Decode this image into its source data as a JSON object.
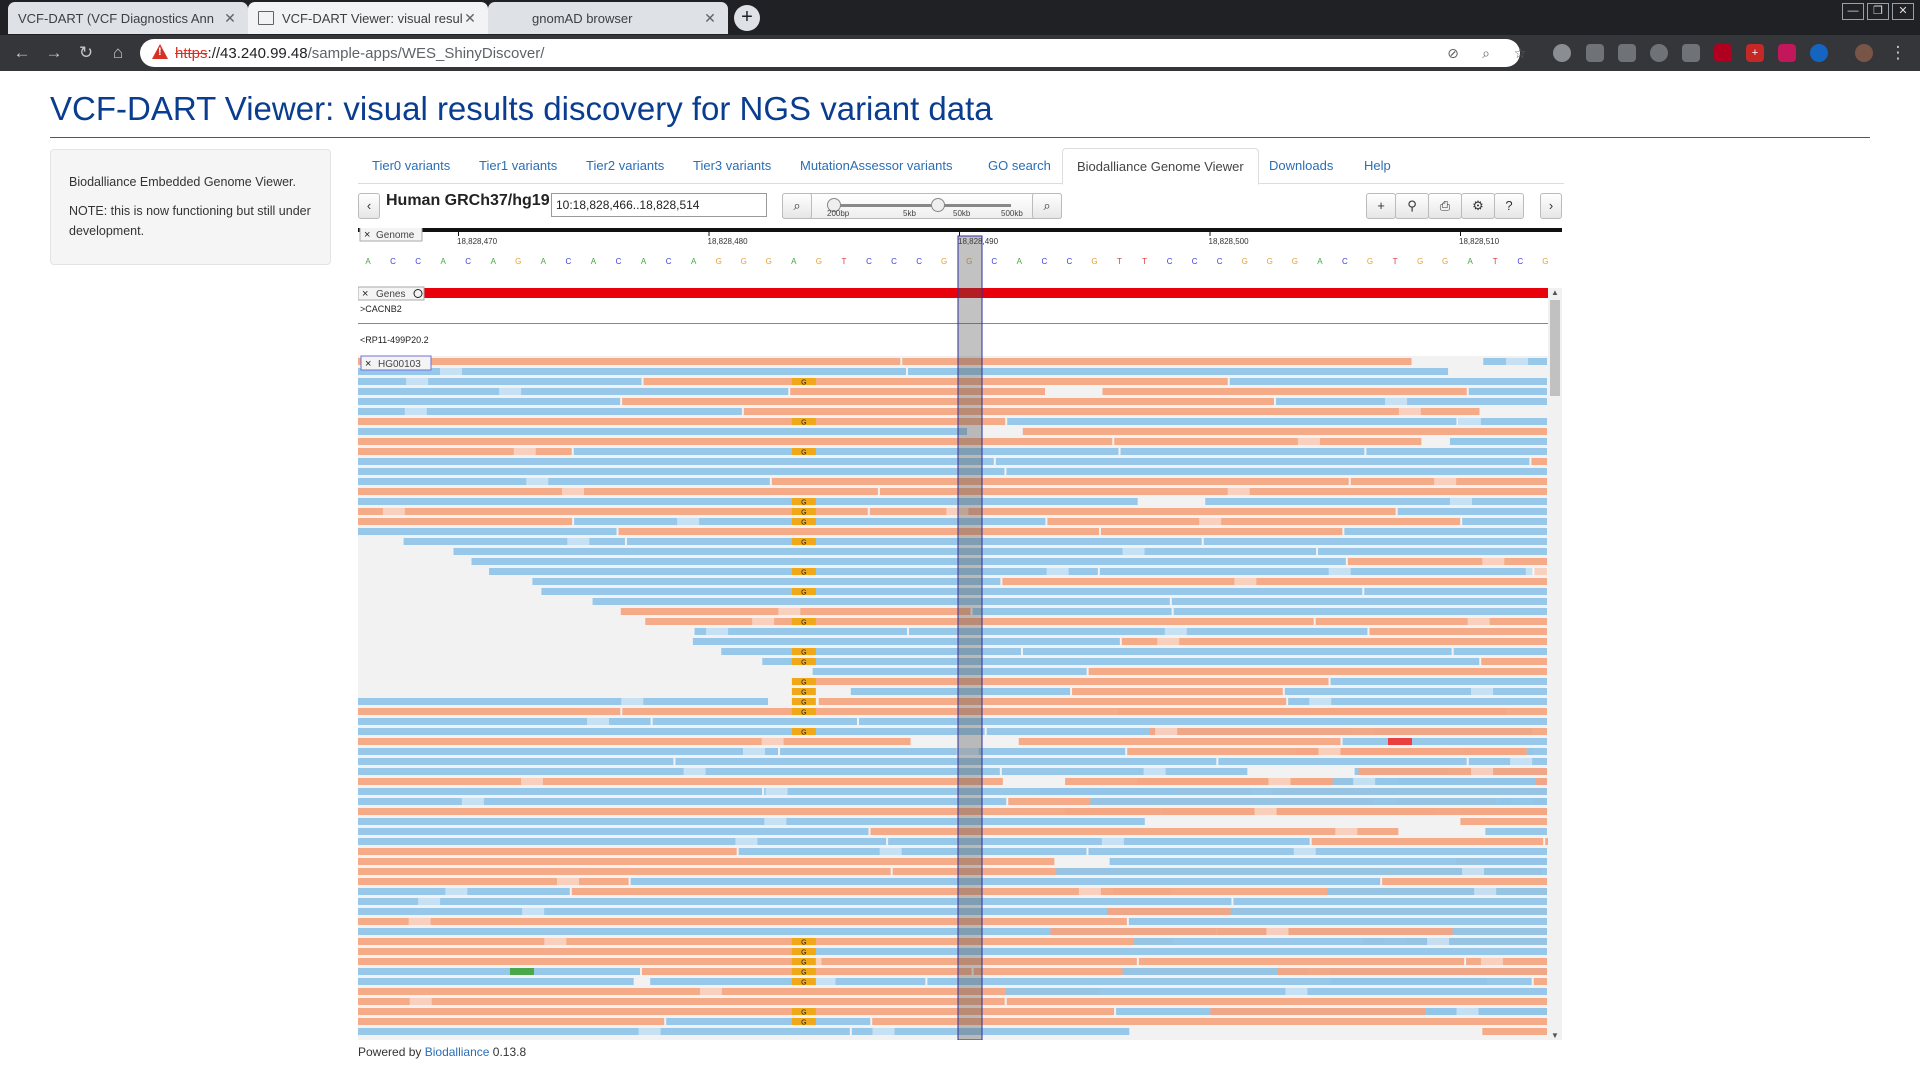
{
  "browser": {
    "tabs": [
      {
        "title": "VCF-DART (VCF Diagnostics Ann",
        "active": false
      },
      {
        "title": "VCF-DART Viewer: visual results di",
        "active": true
      },
      {
        "title": "gnomAD browser",
        "active": false
      }
    ],
    "url": {
      "scheme": "https",
      "host": "://43.240.99.48",
      "path": "/sample-apps/WES_ShinyDiscover/"
    }
  },
  "page": {
    "title": "VCF-DART Viewer: visual results discovery for NGS variant data"
  },
  "sidebar": {
    "line1": "Biodalliance Embedded Genome Viewer.",
    "line2": "NOTE: this is now functioning but still under development."
  },
  "nav": {
    "tabs": [
      {
        "label": "Tier0 variants"
      },
      {
        "label": "Tier1 variants"
      },
      {
        "label": "Tier2 variants"
      },
      {
        "label": "Tier3 variants"
      },
      {
        "label": "MutationAssessor variants"
      },
      {
        "label": "GO search"
      },
      {
        "label": "Biodalliance Genome Viewer",
        "active": true
      },
      {
        "label": "Downloads"
      },
      {
        "label": "Help"
      }
    ]
  },
  "genome": {
    "assembly": "Human GRCh37/hg19",
    "location": "10:18,828,466..18,828,514",
    "zoom_labels": [
      "200bp",
      "5kb",
      "50kb",
      "500kb"
    ],
    "ruler_labels": [
      "18,828,470",
      "18,828,480",
      "18,828,490",
      "18,828,500",
      "18,828,510"
    ],
    "sequence": "ACCACAGACACACAGGGAGTCCCGGCACCGTTCCCGGGACGTGGATCGAG",
    "tracks": {
      "genome": "Genome",
      "genes": "Genes",
      "gene1": ">CACNB2",
      "gene2": "<RP11-499P20.2",
      "sample": "HG00103"
    },
    "base_colors": {
      "A": "#3cab3c",
      "C": "#3c3cdc",
      "G": "#e8a030",
      "T": "#dc3c3c"
    },
    "read_colors": {
      "forward": "#f4a582",
      "reverse": "#92c5e8",
      "mismatch_g": "#f0a818",
      "mismatch_a": "#4aa84a",
      "mismatch_t": "#e84040"
    }
  },
  "footer": {
    "powered": "Powered by",
    "link": "Biodalliance",
    "version": "0.13.8"
  }
}
